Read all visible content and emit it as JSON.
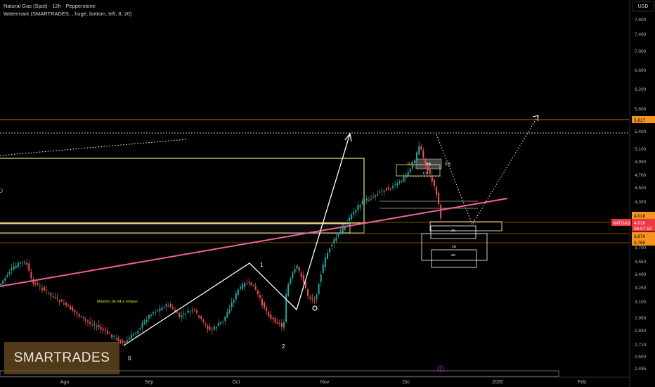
{
  "header": {
    "title": "Natural Gas (Spot) · 12h · Pepperstone",
    "indicator": "Watermark (SMARTRADES, , huge, bottom, left, 8, 20)"
  },
  "watermark_text": "SMARTRADES",
  "currency": "USD",
  "price_axis": {
    "ticks": [
      "7,800",
      "7,400",
      "7,000",
      "6,600",
      "6,200",
      "5,800",
      "5,400",
      "5,100",
      "4,900",
      "4,700",
      "4,500",
      "4,300",
      "3,700",
      "3,550",
      "3,400",
      "3,250",
      "3,100",
      "2,950",
      "2,830",
      "2,710",
      "2,600",
      "2,495"
    ],
    "tags": [
      {
        "label": "5,617",
        "bg": "#f7931a",
        "fg": "#000000"
      },
      {
        "label": "4,018",
        "bg": "#f7931a",
        "fg": "#000000"
      },
      {
        "label": "4,016",
        "bg": "#f23645",
        "fg": "#ffffff"
      },
      {
        "label": "06:57:52",
        "bg": "#f23645",
        "fg": "#ffffff"
      },
      {
        "label": "3,870",
        "bg": "#f7931a",
        "fg": "#000000"
      },
      {
        "label": "3,760",
        "bg": "#f7931a",
        "fg": "#000000"
      }
    ],
    "symbol_tag": "NATGAS"
  },
  "time_axis": [
    "Ago",
    "Sep",
    "Oct",
    "Nov",
    "Dic",
    "2026",
    "Feb"
  ],
  "annotations": {
    "wave_labels": [
      "0",
      "1",
      "2"
    ],
    "note": "Maximo de h4 a romper",
    "fib_left": "0,5",
    "fib_right": "0,5",
    "zone_top": "HB",
    "zone_ch": "CH",
    "zn1": "ZN",
    "zn2": "ZN",
    "zn3": "ZN"
  },
  "colors": {
    "background": "#000000",
    "up": "#26a69a",
    "down": "#ef5350",
    "trendline": "#f06292",
    "orange_level": "#f7931a",
    "yellow_box": "#e6e67a",
    "path": "#ffffff"
  },
  "chart_data": {
    "type": "candlestick",
    "symbol": "NATGAS",
    "timeframe": "12h",
    "x_labels": [
      "Ago",
      "Sep",
      "Oct",
      "Nov",
      "Dic",
      "2026",
      "Feb"
    ],
    "price_levels": {
      "orange_high": 5.617,
      "orange_mid1": 4.018,
      "orange_mid2": 3.87,
      "orange_low": 3.76,
      "last": 4.016
    },
    "swing_points": {
      "p0": {
        "label": "0",
        "price": 2.7
      },
      "p1": {
        "label": "1",
        "price": 3.55
      },
      "p2": {
        "label": "2",
        "price": 2.82
      }
    }
  }
}
